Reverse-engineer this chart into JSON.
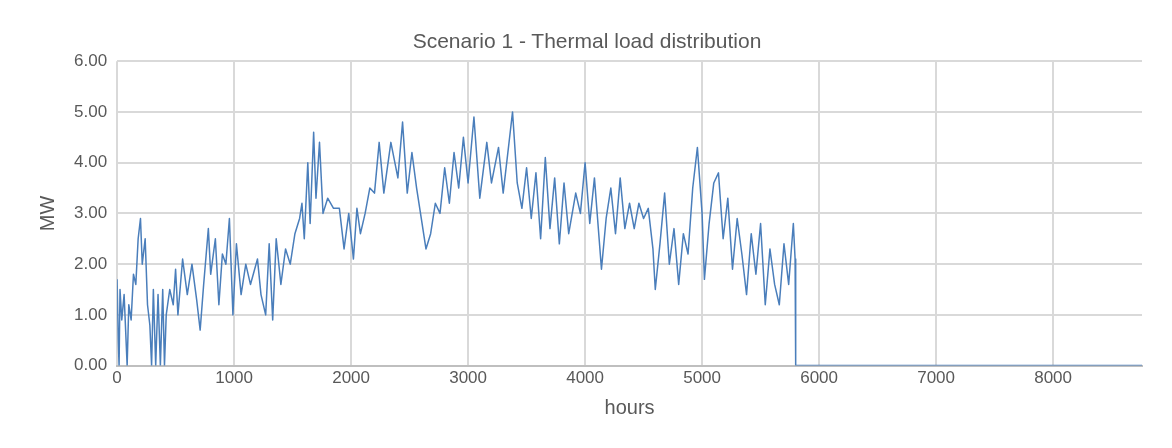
{
  "chart_data": {
    "type": "line",
    "title": "Scenario 1 - Thermal load distribution",
    "xlabel": "hours",
    "ylabel": "MW",
    "x": [
      0,
      10,
      17,
      25,
      40,
      60,
      86,
      100,
      120,
      140,
      160,
      180,
      200,
      215,
      240,
      260,
      280,
      295,
      310,
      330,
      350,
      370,
      390,
      405,
      420,
      450,
      480,
      500,
      520,
      560,
      600,
      640,
      680,
      710,
      740,
      780,
      800,
      840,
      870,
      900,
      930,
      960,
      990,
      1020,
      1060,
      1100,
      1140,
      1200,
      1230,
      1270,
      1300,
      1330,
      1360,
      1400,
      1440,
      1480,
      1520,
      1560,
      1580,
      1600,
      1630,
      1650,
      1680,
      1700,
      1730,
      1760,
      1800,
      1850,
      1900,
      1940,
      1980,
      2020,
      2050,
      2080,
      2120,
      2160,
      2200,
      2240,
      2280,
      2340,
      2400,
      2440,
      2480,
      2520,
      2560,
      2600,
      2640,
      2680,
      2720,
      2760,
      2800,
      2840,
      2880,
      2920,
      2960,
      3000,
      3050,
      3100,
      3160,
      3200,
      3260,
      3300,
      3360,
      3380,
      3420,
      3460,
      3500,
      3540,
      3580,
      3620,
      3660,
      3700,
      3740,
      3780,
      3820,
      3860,
      3920,
      3960,
      4000,
      4040,
      4080,
      4120,
      4140,
      4180,
      4220,
      4260,
      4300,
      4340,
      4380,
      4420,
      4460,
      4500,
      4540,
      4580,
      4600,
      4640,
      4680,
      4720,
      4760,
      4800,
      4840,
      4880,
      4920,
      4960,
      5000,
      5020,
      5060,
      5100,
      5140,
      5180,
      5220,
      5260,
      5300,
      5340,
      5380,
      5420,
      5460,
      5500,
      5540,
      5580,
      5620,
      5660,
      5700,
      5740,
      5780,
      5795,
      5800,
      8760
    ],
    "series": [
      {
        "color": "#4a7ebb",
        "values": [
          1.7,
          0.5,
          0,
          1.5,
          0.9,
          1.4,
          0,
          1.2,
          0.9,
          1.8,
          1.6,
          2.5,
          2.9,
          2.0,
          2.5,
          1.2,
          0.8,
          0,
          1.5,
          0,
          1.4,
          0,
          1.5,
          0,
          1.0,
          1.5,
          1.2,
          1.9,
          1.0,
          2.1,
          1.4,
          2.0,
          1.3,
          0.7,
          1.6,
          2.7,
          1.8,
          2.5,
          1.2,
          2.2,
          2.0,
          2.9,
          1.0,
          2.4,
          1.4,
          2.0,
          1.6,
          2.1,
          1.4,
          1.0,
          2.4,
          0.9,
          2.5,
          1.6,
          2.3,
          2.0,
          2.6,
          2.9,
          3.2,
          2.5,
          4.0,
          2.8,
          4.6,
          3.3,
          4.4,
          3.0,
          3.3,
          3.1,
          3.1,
          2.3,
          3.0,
          2.1,
          3.1,
          2.6,
          3.0,
          3.5,
          3.4,
          4.4,
          3.4,
          4.4,
          3.7,
          4.8,
          3.4,
          4.2,
          3.5,
          2.9,
          2.3,
          2.6,
          3.2,
          3.0,
          3.9,
          3.2,
          4.2,
          3.5,
          4.5,
          3.6,
          4.9,
          3.3,
          4.4,
          3.6,
          4.3,
          3.4,
          4.6,
          5.0,
          3.6,
          3.1,
          3.9,
          2.9,
          3.8,
          2.5,
          4.1,
          2.7,
          3.7,
          2.4,
          3.6,
          2.6,
          3.4,
          3.0,
          4.0,
          2.8,
          3.7,
          2.5,
          1.9,
          2.9,
          3.5,
          2.6,
          3.7,
          2.7,
          3.2,
          2.7,
          3.2,
          2.9,
          3.1,
          2.3,
          1.5,
          2.4,
          3.4,
          2.0,
          2.7,
          1.6,
          2.6,
          2.2,
          3.5,
          4.3,
          3.0,
          1.7,
          2.8,
          3.6,
          3.8,
          2.5,
          3.3,
          1.9,
          2.9,
          2.2,
          1.4,
          2.6,
          1.8,
          2.8,
          1.2,
          2.3,
          1.6,
          1.2,
          2.4,
          1.6,
          2.8,
          2.1,
          0,
          0
        ]
      }
    ],
    "xlim": [
      0,
      8760
    ],
    "xticks": [
      0,
      1000,
      2000,
      3000,
      4000,
      5000,
      6000,
      7000,
      8000
    ],
    "ylim": [
      0,
      6
    ],
    "yticks": [
      {
        "value": 0,
        "label": "0.00"
      },
      {
        "value": 1,
        "label": "1.00"
      },
      {
        "value": 2,
        "label": "2.00"
      },
      {
        "value": 3,
        "label": "3.00"
      },
      {
        "value": 4,
        "label": "4.00"
      },
      {
        "value": 5,
        "label": "5.00"
      },
      {
        "value": 6,
        "label": "6.00"
      }
    ],
    "grid": true,
    "marker": "none",
    "line_style": "solid"
  }
}
